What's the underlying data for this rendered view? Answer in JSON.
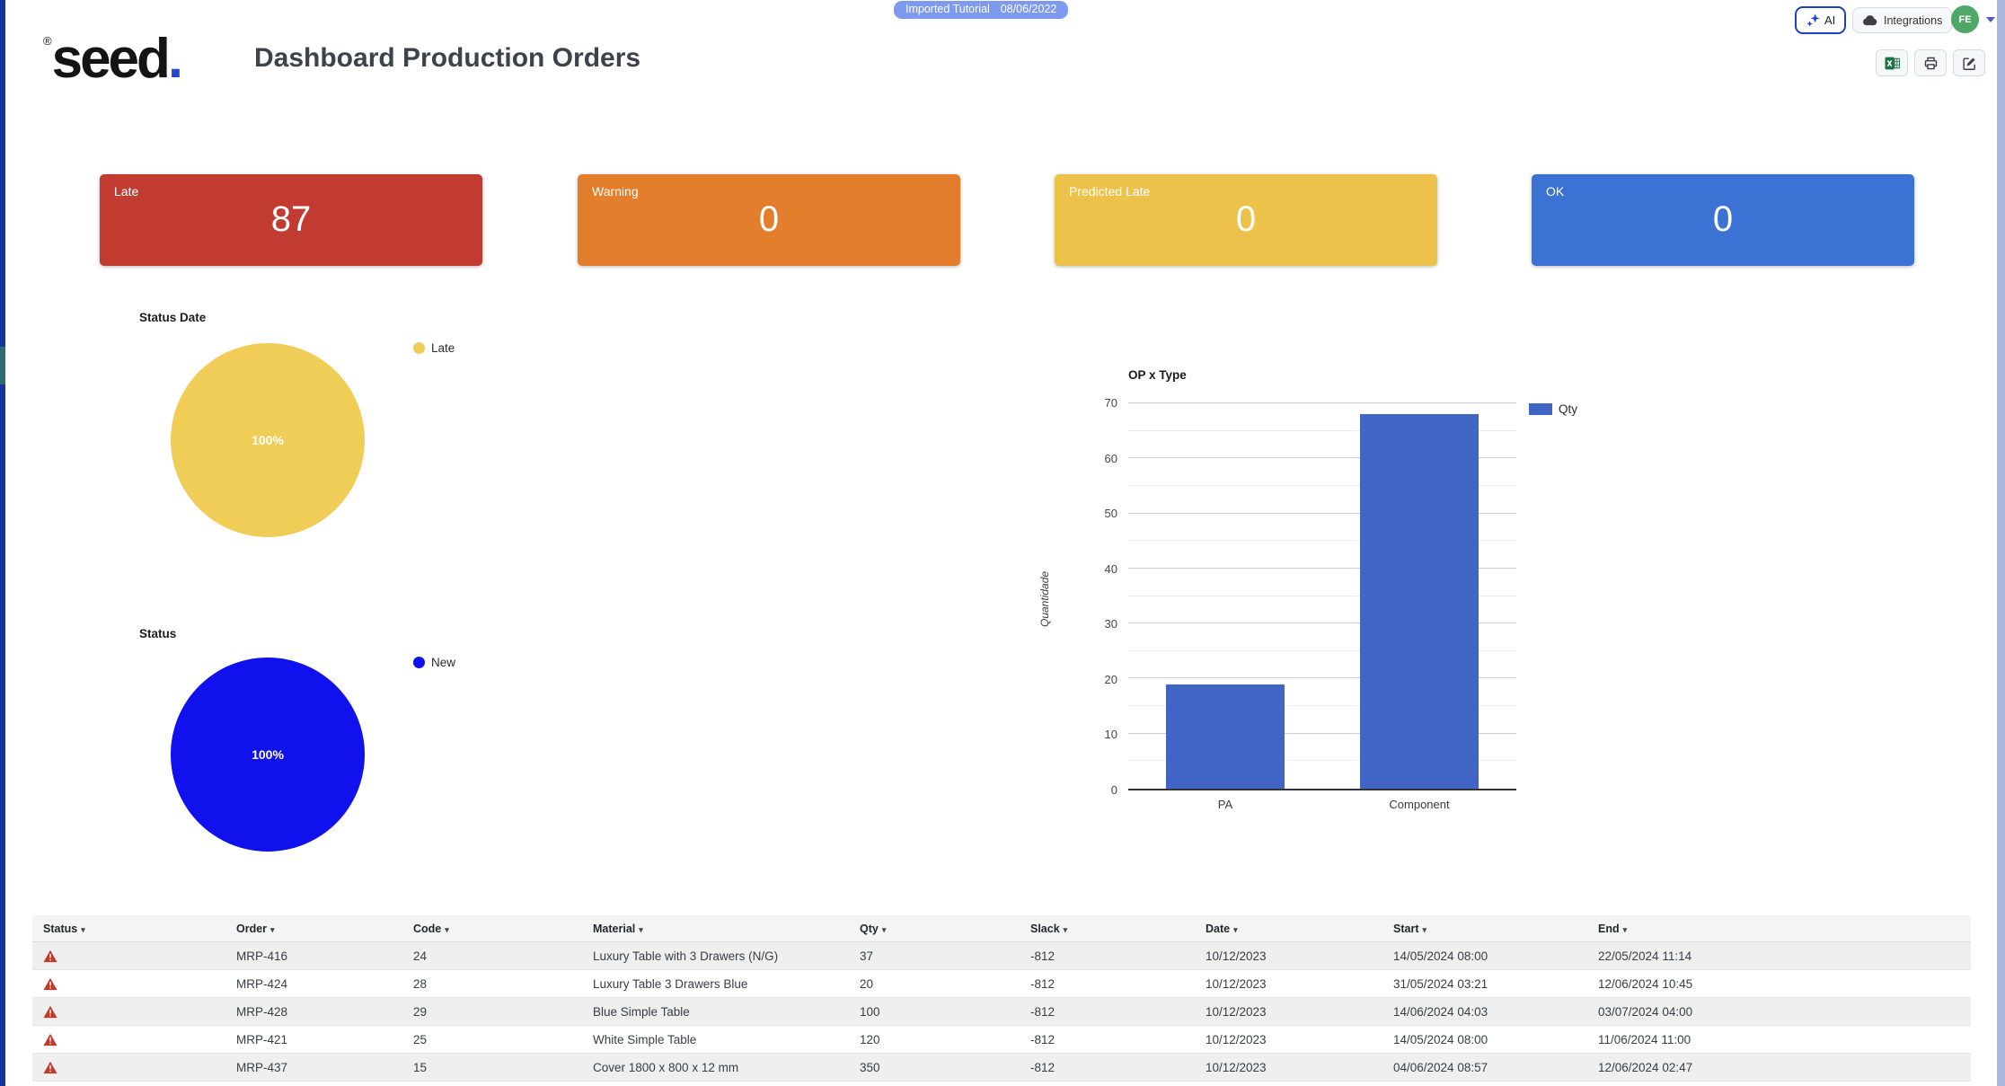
{
  "theme": {
    "left_edge_color": "#16339e",
    "scrollbar_color": "#aab9e3",
    "logo_dot_color": "#2544d0"
  },
  "brand": {
    "name": "seed",
    "registered": "®",
    "dot": "."
  },
  "header": {
    "title": "Dashboard Production Orders",
    "badge": {
      "label": "Imported Tutorial",
      "date": "08/06/2022"
    },
    "ai_button_label": "AI",
    "integrations_button_label": "Integrations",
    "avatar_initials": "FE"
  },
  "summary_cards": [
    {
      "label": "Late",
      "value": "87",
      "color": "#c23b31"
    },
    {
      "label": "Warning",
      "value": "0",
      "color": "#e27e2c"
    },
    {
      "label": "Predicted Late",
      "value": "0",
      "color": "#ecc24b"
    },
    {
      "label": "OK",
      "value": "0",
      "color": "#3b72d4"
    }
  ],
  "chart_data": [
    {
      "type": "pie",
      "title": "Status Date",
      "slices": [
        {
          "label": "Late",
          "value": 100,
          "text": "100%",
          "color": "#f0cd57"
        }
      ],
      "legend_position": "right"
    },
    {
      "type": "pie",
      "title": "Status",
      "slices": [
        {
          "label": "New",
          "value": 100,
          "text": "100%",
          "color": "#1111ee"
        }
      ],
      "legend_position": "right"
    },
    {
      "type": "bar",
      "title": "OP x Type",
      "categories": [
        "PA",
        "Component"
      ],
      "series": [
        {
          "name": "Qty",
          "color": "#4165c5",
          "values": [
            19,
            68
          ]
        }
      ],
      "xlabel": "",
      "ylabel": "Quantidade",
      "ylim": [
        0,
        70
      ],
      "ytick_step": 10,
      "minor_step": 5,
      "grid": true,
      "legend_position": "right"
    }
  ],
  "table": {
    "sort_caret": "▾",
    "columns": [
      "Status",
      "Order",
      "Code",
      "Material",
      "Qty",
      "Slack",
      "Date",
      "Start",
      "End"
    ],
    "rows": [
      {
        "status_icon": "warning-triangle",
        "order": "MRP-416",
        "code": "24",
        "material": "Luxury Table with 3 Drawers (N/G)",
        "qty": "37",
        "slack": "-812",
        "date": "10/12/2023",
        "start": "14/05/2024 08:00",
        "end": "22/05/2024 11:14"
      },
      {
        "status_icon": "warning-triangle",
        "order": "MRP-424",
        "code": "28",
        "material": "Luxury Table 3 Drawers Blue",
        "qty": "20",
        "slack": "-812",
        "date": "10/12/2023",
        "start": "31/05/2024 03:21",
        "end": "12/06/2024 10:45"
      },
      {
        "status_icon": "warning-triangle",
        "order": "MRP-428",
        "code": "29",
        "material": "Blue Simple Table",
        "qty": "100",
        "slack": "-812",
        "date": "10/12/2023",
        "start": "14/06/2024 04:03",
        "end": "03/07/2024 04:00"
      },
      {
        "status_icon": "warning-triangle",
        "order": "MRP-421",
        "code": "25",
        "material": "White Simple Table",
        "qty": "120",
        "slack": "-812",
        "date": "10/12/2023",
        "start": "14/05/2024 08:00",
        "end": "11/06/2024 11:00"
      },
      {
        "status_icon": "warning-triangle",
        "order": "MRP-437",
        "code": "15",
        "material": "Cover 1800 x 800 x 12 mm",
        "qty": "350",
        "slack": "-812",
        "date": "10/12/2023",
        "start": "04/06/2024 08:57",
        "end": "12/06/2024 02:47"
      }
    ]
  }
}
